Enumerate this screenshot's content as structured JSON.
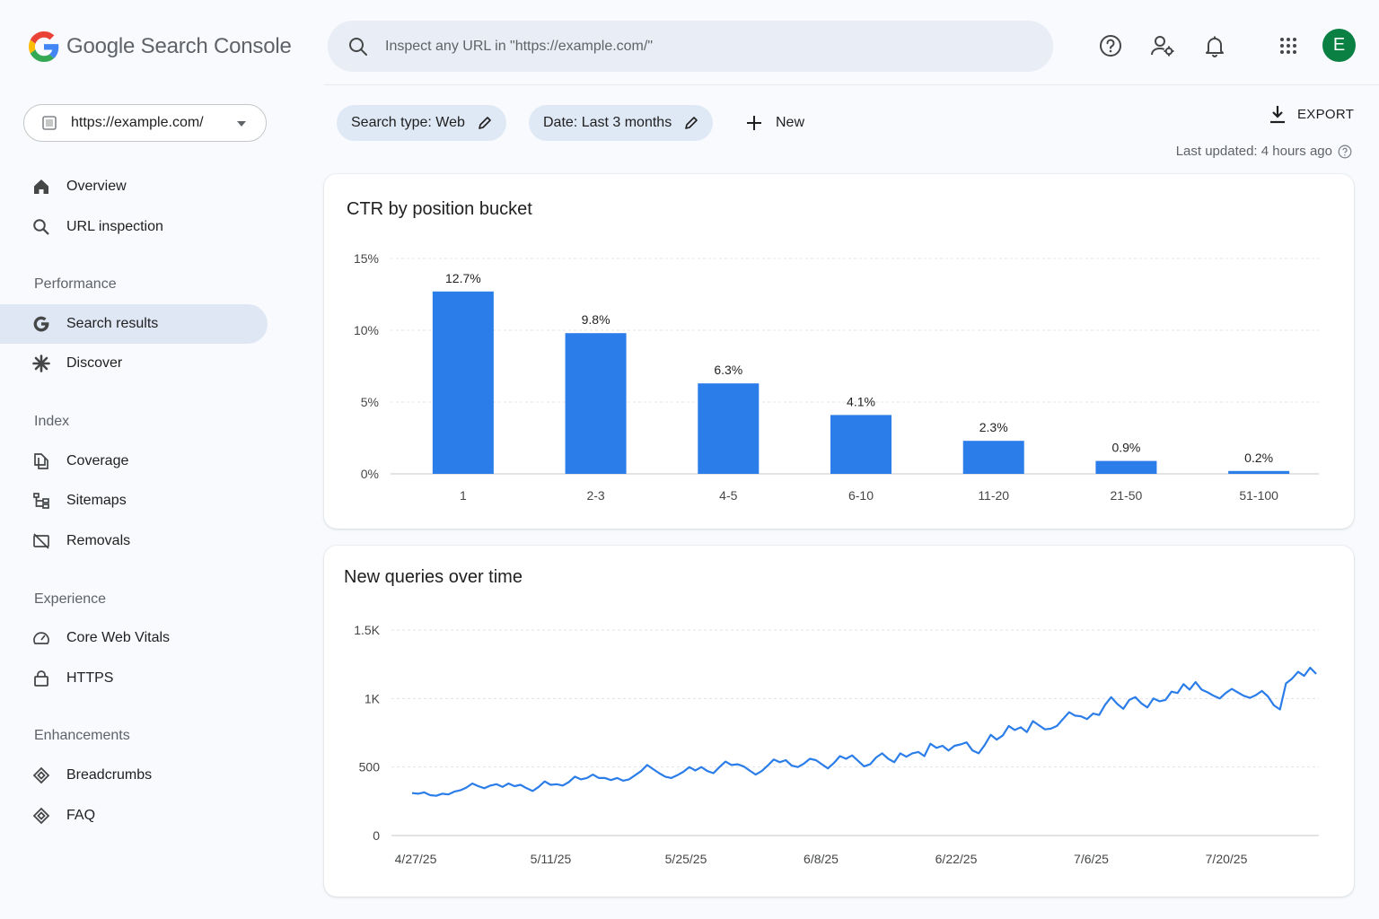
{
  "header": {
    "brand_google": "Google",
    "brand_product": "Search Console",
    "search_placeholder": "Inspect any URL in \"https://example.com/\"",
    "icons": [
      "help-icon",
      "manage-users-icon",
      "bell-icon",
      "apps-grid-icon"
    ],
    "avatar_letter": "E",
    "avatar_color": "#0b8043"
  },
  "sidebar": {
    "property": "https://example.com/",
    "items": [
      {
        "label": "Overview",
        "icon": "home-icon"
      },
      {
        "label": "URL inspection",
        "icon": "search-icon"
      }
    ],
    "sections": [
      {
        "title": "Performance",
        "items": [
          {
            "label": "Search results",
            "icon": "google-g-icon",
            "active": true
          },
          {
            "label": "Discover",
            "icon": "asterisk-icon"
          }
        ]
      },
      {
        "title": "Index",
        "items": [
          {
            "label": "Coverage",
            "icon": "pages-icon"
          },
          {
            "label": "Sitemaps",
            "icon": "sitemap-icon"
          },
          {
            "label": "Removals",
            "icon": "removals-icon"
          }
        ]
      },
      {
        "title": "Experience",
        "items": [
          {
            "label": "Core Web Vitals",
            "icon": "gauge-icon"
          },
          {
            "label": "HTTPS",
            "icon": "lock-icon"
          }
        ]
      },
      {
        "title": "Enhancements",
        "items": [
          {
            "label": "Breadcrumbs",
            "icon": "diamond-icon"
          },
          {
            "label": "FAQ",
            "icon": "diamond-icon"
          }
        ]
      }
    ]
  },
  "filters": {
    "search_type": "Search type: Web",
    "date": "Date: Last 3 months",
    "new_label": "New",
    "export_label": "EXPORT",
    "last_updated": "Last updated: 4 hours ago"
  },
  "accent_color": "#1a73e8",
  "chart_data": [
    {
      "type": "bar",
      "title": "CTR by position bucket",
      "categories": [
        "1",
        "2-3",
        "4-5",
        "6-10",
        "11-20",
        "21-50",
        "51-100"
      ],
      "values": [
        12.7,
        9.8,
        6.3,
        4.1,
        2.3,
        0.9,
        0.2
      ],
      "data_labels": [
        "12.7%",
        "9.8%",
        "6.3%",
        "4.1%",
        "2.3%",
        "0.9%",
        "0.2%"
      ],
      "y_ticks": [
        0,
        5,
        10,
        15
      ],
      "y_tick_labels": [
        "0%",
        "5%",
        "10%",
        "15%"
      ],
      "ylim": [
        0,
        15
      ],
      "grid": true,
      "color": "#2b7de9"
    },
    {
      "type": "line",
      "title": "New queries over time",
      "x_tick_labels": [
        "4/27/25",
        "5/11/25",
        "5/25/25",
        "6/8/25",
        "6/22/25",
        "7/6/25",
        "7/20/25"
      ],
      "x_start": "4/27/25",
      "y_ticks": [
        0,
        500,
        1000,
        1500
      ],
      "y_tick_labels": [
        "0",
        "500",
        "1K",
        "1.5K"
      ],
      "ylim": [
        0,
        1500
      ],
      "grid": true,
      "color": "#2b7de9",
      "series": [
        {
          "values": [
            310,
            305,
            315,
            295,
            290,
            305,
            300,
            320,
            330,
            350,
            380,
            360,
            345,
            365,
            375,
            355,
            380,
            360,
            370,
            345,
            325,
            355,
            395,
            370,
            375,
            365,
            390,
            430,
            410,
            420,
            445,
            420,
            420,
            405,
            420,
            400,
            410,
            440,
            470,
            515,
            485,
            455,
            430,
            420,
            440,
            465,
            500,
            475,
            500,
            470,
            455,
            500,
            540,
            515,
            520,
            505,
            475,
            445,
            470,
            510,
            555,
            535,
            550,
            510,
            500,
            525,
            560,
            550,
            520,
            490,
            530,
            580,
            560,
            585,
            545,
            505,
            520,
            570,
            600,
            560,
            535,
            600,
            575,
            600,
            610,
            580,
            670,
            640,
            655,
            620,
            655,
            665,
            680,
            620,
            600,
            660,
            735,
            700,
            730,
            800,
            770,
            790,
            755,
            835,
            805,
            775,
            780,
            800,
            850,
            900,
            875,
            870,
            850,
            890,
            880,
            955,
            1010,
            960,
            925,
            990,
            1010,
            965,
            935,
            1000,
            980,
            990,
            1050,
            1040,
            1105,
            1065,
            1120,
            1065,
            1045,
            1020,
            1000,
            1040,
            1070,
            1045,
            1020,
            1005,
            1025,
            1055,
            1015,
            950,
            920,
            1110,
            1145,
            1195,
            1165,
            1225,
            1180
          ]
        }
      ]
    }
  ]
}
